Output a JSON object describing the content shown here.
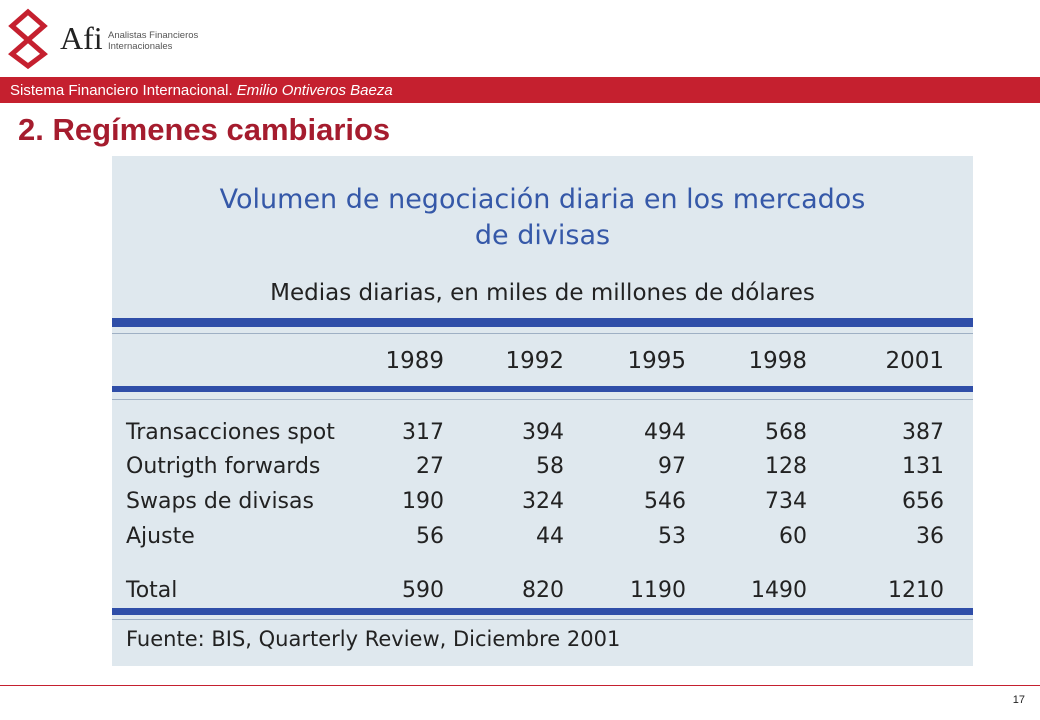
{
  "header": {
    "brand": "Afi",
    "brand_sub_line1": "Analistas Financieros",
    "brand_sub_line2": "Internacionales",
    "banner_main": "Sistema Financiero Internacional. ",
    "banner_author": "Emilio Ontiveros Baeza"
  },
  "slide": {
    "title": "2. Regímenes cambiarios",
    "page_number": "17"
  },
  "table": {
    "title_line1": "Volumen de negociación diaria en los mercados",
    "title_line2": "de divisas",
    "subtitle": "Medias diarias, en miles de millones de dólares",
    "years": [
      "1989",
      "1992",
      "1995",
      "1998",
      "2001"
    ],
    "rows": [
      {
        "label": "Transacciones spot",
        "values": [
          "317",
          "394",
          "494",
          "568",
          "387"
        ]
      },
      {
        "label": "Outrigth forwards",
        "values": [
          "27",
          "58",
          "97",
          "128",
          "131"
        ]
      },
      {
        "label": "Swaps de divisas",
        "values": [
          "190",
          "324",
          "546",
          "734",
          "656"
        ]
      },
      {
        "label": "Ajuste",
        "values": [
          "56",
          "44",
          "53",
          "60",
          "36"
        ]
      }
    ],
    "total": {
      "label": "Total",
      "values": [
        "590",
        "820",
        "1190",
        "1490",
        "1210"
      ]
    },
    "source": "Fuente: BIS, Quarterly Review, Diciembre 2001",
    "colors": {
      "bar": "#2f4ea8",
      "title": "#3558a8",
      "background": "#dfe8ee"
    }
  },
  "colors": {
    "accent": "#c5202f",
    "title": "#a51c2e"
  }
}
